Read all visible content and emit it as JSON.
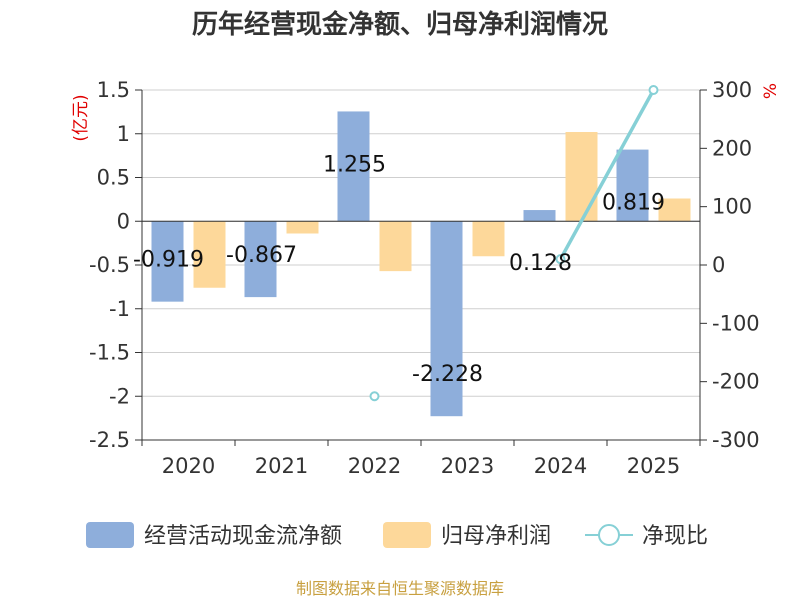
{
  "chart_data": {
    "type": "bar",
    "title": "历年经营现金净额、归母净利润情况",
    "categories": [
      "2020",
      "2021",
      "2022",
      "2023",
      "2024",
      "2025"
    ],
    "left_axis": {
      "unit": "(亿元)",
      "ylim": [
        -2.5,
        1.5
      ],
      "ticks": [
        1.5,
        1,
        0.5,
        0,
        -0.5,
        -1,
        -1.5,
        -2,
        -2.5
      ],
      "tick_labels": [
        "1.5",
        "1",
        "0.5",
        "0",
        "-0.5",
        "-1",
        "-1.5",
        "-2",
        "-2.5"
      ]
    },
    "right_axis": {
      "unit": "%",
      "ylim": [
        -300,
        300
      ],
      "ticks": [
        300,
        200,
        100,
        0,
        -100,
        -200,
        -300
      ],
      "tick_labels": [
        "300",
        "200",
        "100",
        "0",
        "-100",
        "-200",
        "-300"
      ]
    },
    "series": [
      {
        "name": "经营活动现金流净额",
        "type": "bar",
        "axis": "left",
        "color": "#8eaedb",
        "values": [
          -0.919,
          -0.867,
          1.255,
          -2.228,
          0.128,
          0.819
        ],
        "labels": [
          "-0.919",
          "-0.867",
          "1.255",
          "-2.228",
          "0.128",
          "0.819"
        ]
      },
      {
        "name": "归母净利润",
        "type": "bar",
        "axis": "left",
        "color": "#fdd89a",
        "values": [
          -0.76,
          -0.14,
          -0.57,
          -0.4,
          1.02,
          0.26
        ]
      },
      {
        "name": "净现比",
        "type": "line",
        "axis": "right",
        "color": "#86d0d6",
        "values": [
          null,
          null,
          -225,
          null,
          10,
          300
        ]
      }
    ],
    "legend_position": "bottom",
    "source": "制图数据来自恒生聚源数据库"
  }
}
